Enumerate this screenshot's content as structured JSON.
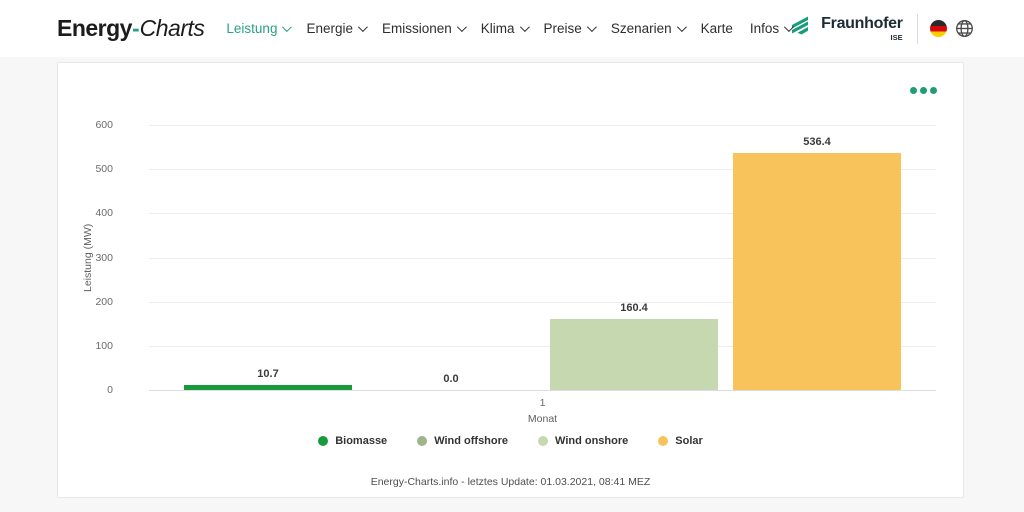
{
  "header": {
    "logo": {
      "bold": "Energy",
      "sep": "-",
      "italic": "Charts"
    },
    "nav": [
      {
        "label": "Leistung",
        "active": true,
        "chevron": true
      },
      {
        "label": "Energie",
        "active": false,
        "chevron": true
      },
      {
        "label": "Emissionen",
        "active": false,
        "chevron": true
      },
      {
        "label": "Klima",
        "active": false,
        "chevron": true
      },
      {
        "label": "Preise",
        "active": false,
        "chevron": true
      },
      {
        "label": "Szenarien",
        "active": false,
        "chevron": true
      },
      {
        "label": "Karte",
        "active": false,
        "chevron": false
      },
      {
        "label": "Infos",
        "active": false,
        "chevron": true
      }
    ],
    "fraunhofer": {
      "name": "Fraunhofer",
      "division": "ISE"
    },
    "icons": [
      "fraunhofer-logo-icon",
      "german-flag-icon",
      "globe-icon"
    ]
  },
  "chart_data": {
    "type": "bar",
    "title": "",
    "xlabel": "Monat",
    "ylabel": "Leistung (MW)",
    "categories": [
      "1"
    ],
    "series": [
      {
        "name": "Biomasse",
        "values": [
          10.7
        ],
        "label": "10.7",
        "color": "#18993e"
      },
      {
        "name": "Wind offshore",
        "values": [
          0.0
        ],
        "label": "0.0",
        "color": "#9eb489"
      },
      {
        "name": "Wind onshore",
        "values": [
          160.4
        ],
        "label": "160.4",
        "color": "#c6d8b0"
      },
      {
        "name": "Solar",
        "values": [
          536.4
        ],
        "label": "536.4",
        "color": "#f9c35c"
      }
    ],
    "ylim": [
      0,
      600
    ],
    "yticks": [
      0,
      100,
      200,
      300,
      400,
      500,
      600
    ],
    "grid": true,
    "legend_position": "bottom"
  },
  "footer": {
    "update_text": "Energy-Charts.info - letztes Update: 01.03.2021, 08:41 MEZ"
  },
  "colors": {
    "accent_teal": "#2aa187",
    "menu_dots": "#1f9e74",
    "grid": "#ededee",
    "axis_text": "#6b6b6b",
    "page_bg": "#f7f7f8",
    "card_bg": "#ffffff"
  }
}
